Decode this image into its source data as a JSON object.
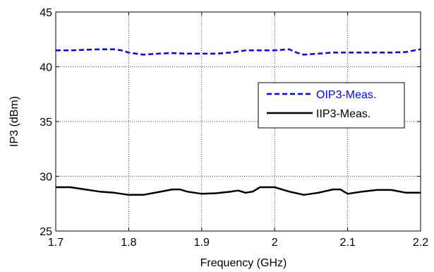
{
  "chart_data": {
    "type": "line",
    "xlabel": "Frequency (GHz)",
    "ylabel": "IP3 (dBm)",
    "xlim": [
      1.7,
      2.2
    ],
    "ylim": [
      25,
      45
    ],
    "xticks": [
      "1.7",
      "1.8",
      "1.9",
      "2",
      "2.1",
      "2.2"
    ],
    "yticks": [
      "25",
      "30",
      "35",
      "40",
      "45"
    ],
    "grid": true,
    "legend_position": "center-right",
    "series": [
      {
        "name": "OIP3-Meas.",
        "color": "#0000ff",
        "dash": "dashed",
        "x": [
          1.7,
          1.72,
          1.74,
          1.76,
          1.78,
          1.79,
          1.8,
          1.81,
          1.82,
          1.84,
          1.86,
          1.88,
          1.9,
          1.92,
          1.94,
          1.96,
          1.98,
          2.0,
          2.01,
          2.02,
          2.03,
          2.04,
          2.06,
          2.08,
          2.1,
          2.12,
          2.14,
          2.16,
          2.18,
          2.2
        ],
        "y": [
          41.5,
          41.5,
          41.55,
          41.6,
          41.6,
          41.5,
          41.3,
          41.2,
          41.1,
          41.2,
          41.25,
          41.2,
          41.2,
          41.2,
          41.3,
          41.5,
          41.5,
          41.5,
          41.55,
          41.6,
          41.3,
          41.1,
          41.2,
          41.3,
          41.3,
          41.3,
          41.3,
          41.3,
          41.35,
          41.6
        ]
      },
      {
        "name": "IIP3-Meas.",
        "color": "#000000",
        "dash": "solid",
        "x": [
          1.7,
          1.72,
          1.74,
          1.76,
          1.78,
          1.8,
          1.82,
          1.84,
          1.86,
          1.87,
          1.88,
          1.9,
          1.92,
          1.94,
          1.95,
          1.96,
          1.97,
          1.98,
          1.99,
          2.0,
          2.02,
          2.04,
          2.06,
          2.08,
          2.09,
          2.1,
          2.12,
          2.14,
          2.16,
          2.18,
          2.2
        ],
        "y": [
          29.0,
          29.0,
          28.8,
          28.6,
          28.5,
          28.3,
          28.3,
          28.55,
          28.8,
          28.8,
          28.6,
          28.4,
          28.45,
          28.6,
          28.7,
          28.5,
          28.6,
          29.0,
          29.0,
          29.0,
          28.6,
          28.3,
          28.5,
          28.8,
          28.8,
          28.4,
          28.6,
          28.75,
          28.75,
          28.5,
          28.5
        ]
      }
    ]
  }
}
